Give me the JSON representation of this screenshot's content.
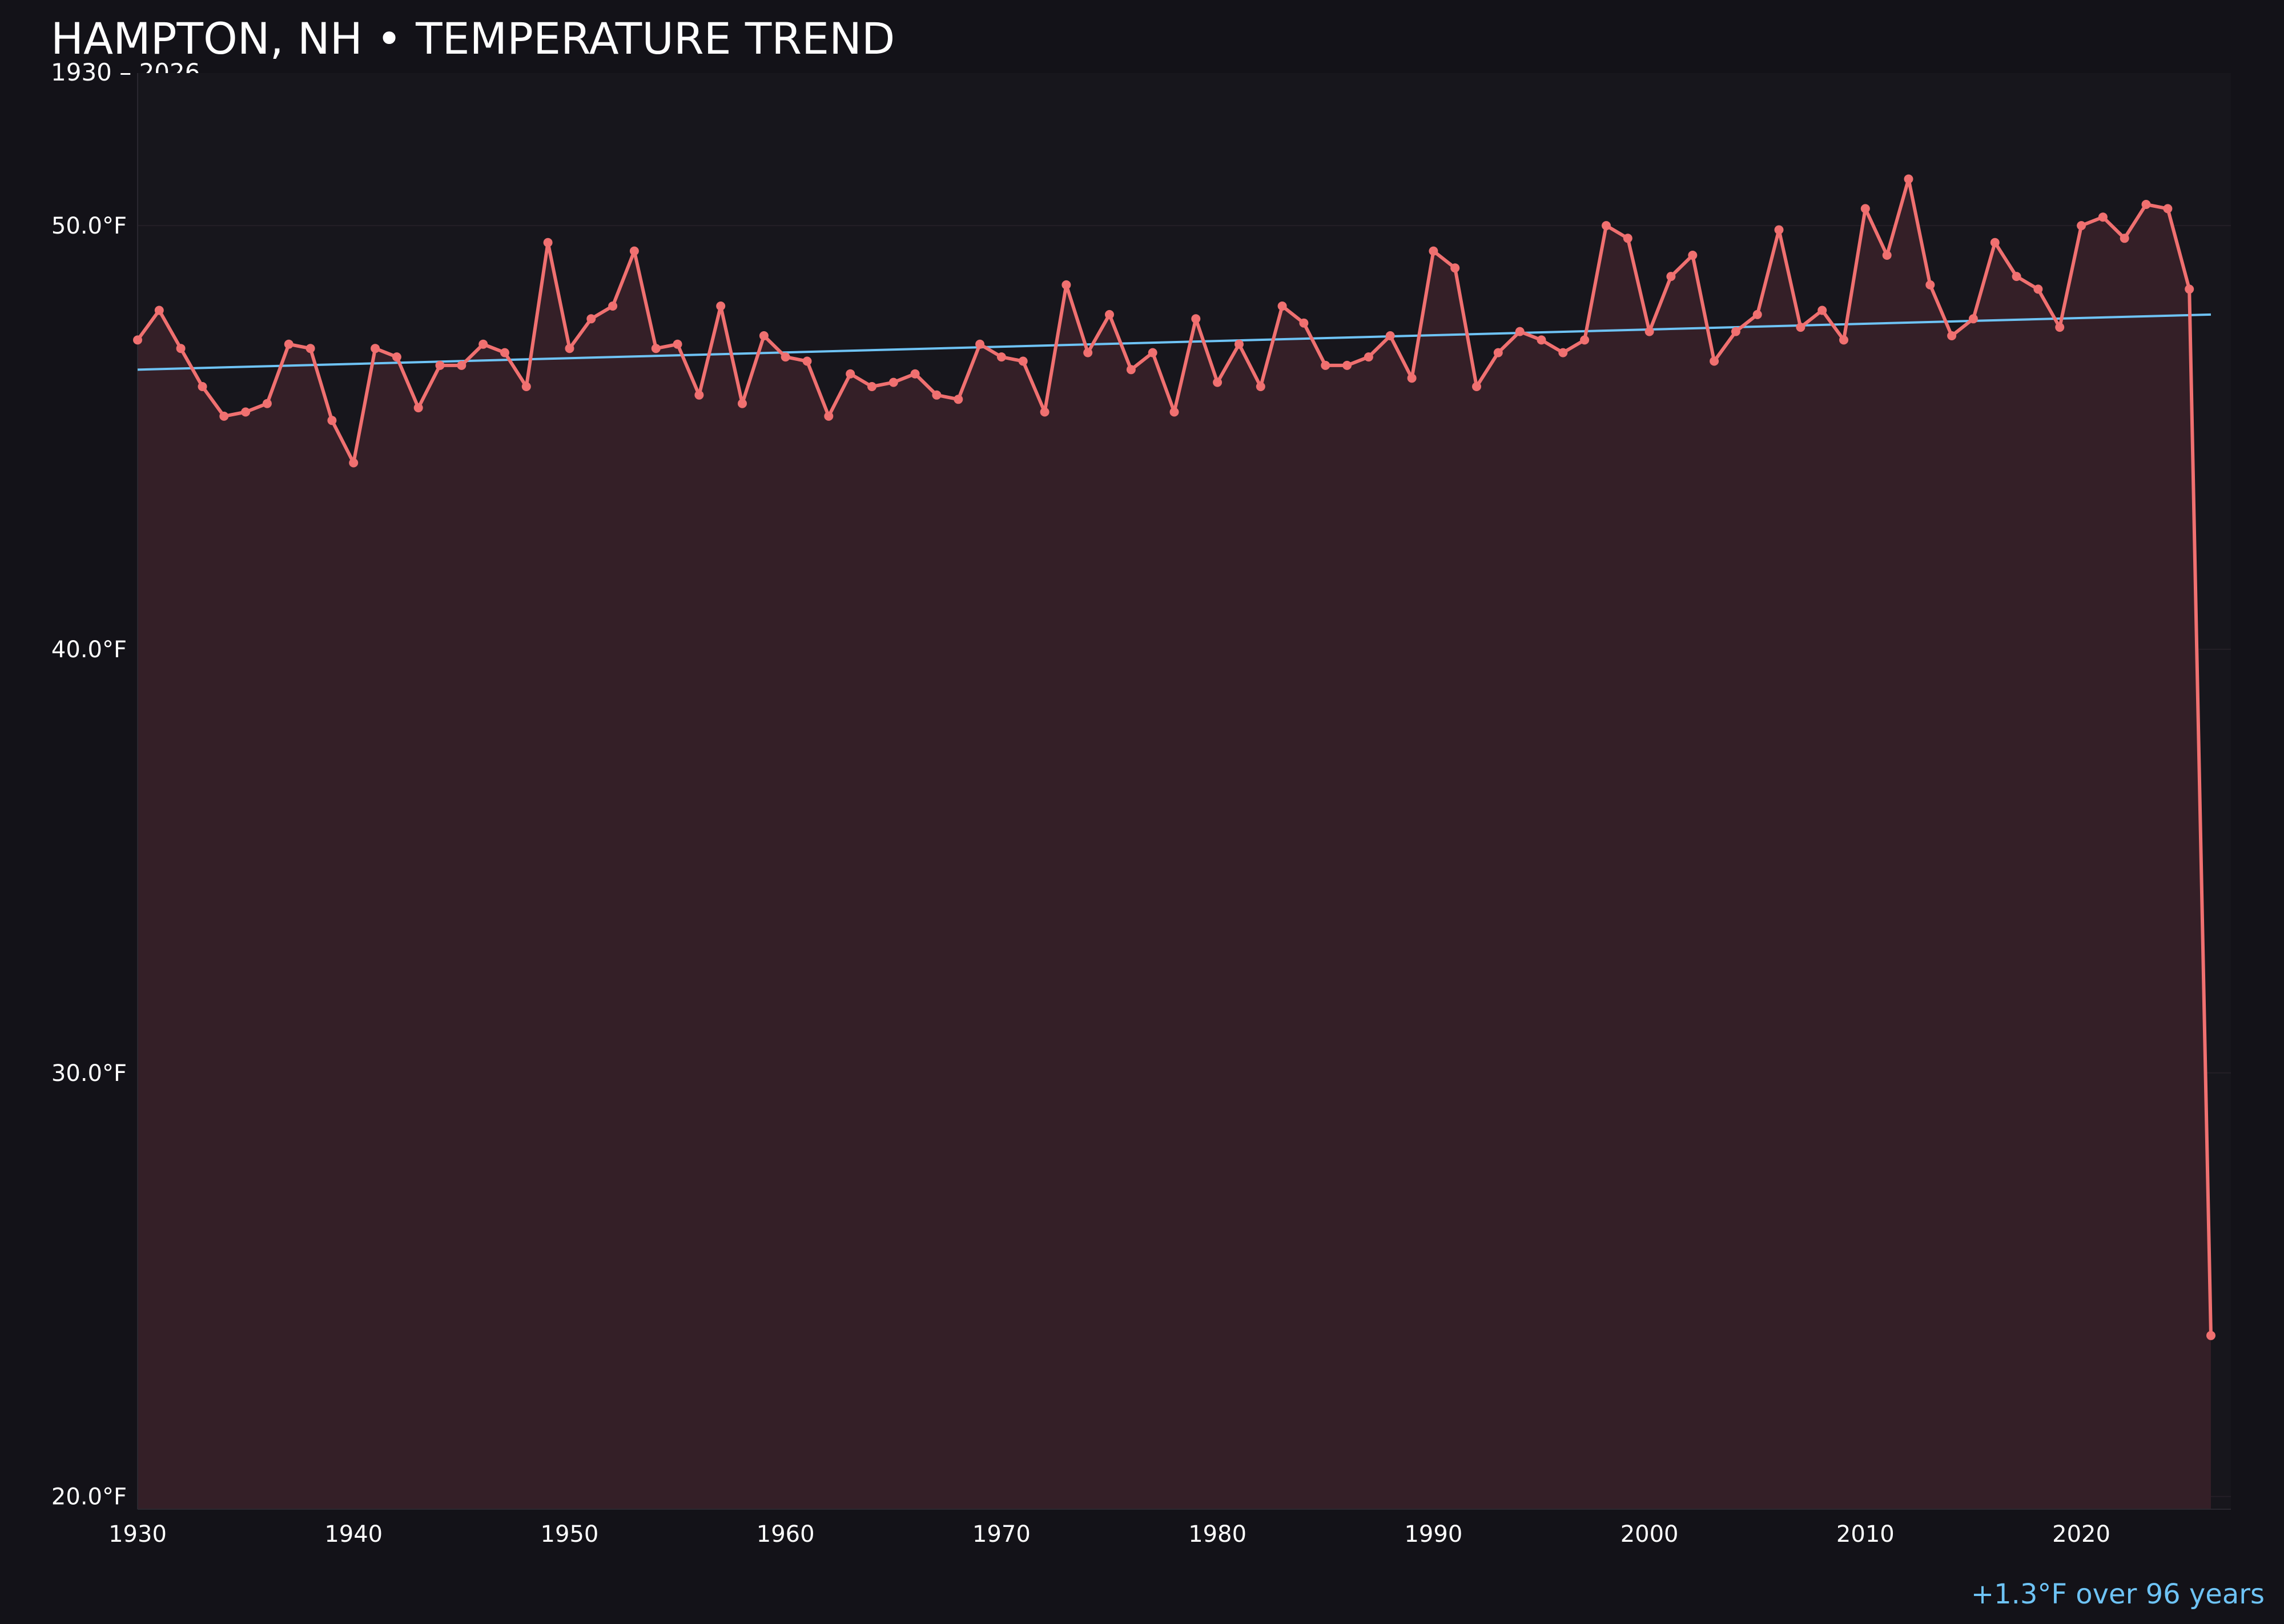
{
  "colors": {
    "background": "#131218",
    "temperature_line": "#f07070",
    "area_fill": "#341f27",
    "trend_line": "#6ec3f5",
    "grid": "#241f26",
    "text": "#ffffff"
  },
  "chart_data": {
    "type": "line",
    "title": "HAMPTON, NH • TEMPERATURE TREND",
    "subtitle": "1930 – 2026",
    "annotation": "+1.3°F over 96 years",
    "xlabel": "",
    "ylabel": "",
    "xlim": [
      1930,
      2027
    ],
    "ylim": [
      19.7,
      53.6
    ],
    "grid": true,
    "area_fill": true,
    "x_ticks": [
      {
        "value": 1930,
        "label": "1930"
      },
      {
        "value": 1940,
        "label": "1940"
      },
      {
        "value": 1950,
        "label": "1950"
      },
      {
        "value": 1960,
        "label": "1960"
      },
      {
        "value": 1970,
        "label": "1970"
      },
      {
        "value": 1980,
        "label": "1980"
      },
      {
        "value": 1990,
        "label": "1990"
      },
      {
        "value": 2000,
        "label": "2000"
      },
      {
        "value": 2010,
        "label": "2010"
      },
      {
        "value": 2020,
        "label": "2020"
      }
    ],
    "y_ticks": [
      {
        "value": 20,
        "label": "20.0°F"
      },
      {
        "value": 30,
        "label": "30.0°F"
      },
      {
        "value": 40,
        "label": "40.0°F"
      },
      {
        "value": 50,
        "label": "50.0°F"
      }
    ],
    "x": [
      1930,
      1931,
      1932,
      1933,
      1934,
      1935,
      1936,
      1937,
      1938,
      1939,
      1940,
      1941,
      1942,
      1943,
      1944,
      1945,
      1946,
      1947,
      1948,
      1949,
      1950,
      1951,
      1952,
      1953,
      1954,
      1955,
      1956,
      1957,
      1958,
      1959,
      1960,
      1961,
      1962,
      1963,
      1964,
      1965,
      1966,
      1967,
      1968,
      1969,
      1970,
      1971,
      1972,
      1973,
      1974,
      1975,
      1976,
      1977,
      1978,
      1979,
      1980,
      1981,
      1982,
      1983,
      1984,
      1985,
      1986,
      1987,
      1988,
      1989,
      1990,
      1991,
      1992,
      1993,
      1994,
      1995,
      1996,
      1997,
      1998,
      1999,
      2000,
      2001,
      2002,
      2003,
      2004,
      2005,
      2006,
      2007,
      2008,
      2009,
      2010,
      2011,
      2012,
      2013,
      2014,
      2015,
      2016,
      2017,
      2018,
      2019,
      2020,
      2021,
      2022,
      2023,
      2024,
      2025,
      2026
    ],
    "series": [
      {
        "values": [
          47.3,
          48.0,
          47.1,
          46.2,
          45.5,
          45.6,
          45.8,
          47.2,
          47.1,
          45.4,
          44.4,
          47.1,
          46.9,
          45.7,
          46.7,
          46.7,
          47.2,
          47.0,
          46.2,
          49.6,
          47.1,
          47.8,
          48.1,
          49.4,
          47.1,
          47.2,
          46.0,
          48.1,
          45.8,
          47.4,
          46.9,
          46.8,
          45.5,
          46.5,
          46.2,
          46.3,
          46.5,
          46.0,
          45.9,
          47.2,
          46.9,
          46.8,
          45.6,
          48.6,
          47.0,
          47.9,
          46.6,
          47.0,
          45.6,
          47.8,
          46.3,
          47.2,
          46.2,
          48.1,
          47.7,
          46.7,
          46.7,
          46.9,
          47.4,
          46.4,
          49.4,
          49.0,
          46.2,
          47.0,
          47.5,
          47.3,
          47.0,
          47.3,
          50.0,
          49.7,
          47.5,
          48.8,
          49.3,
          46.8,
          47.5,
          47.9,
          49.9,
          47.6,
          48.0,
          47.3,
          50.4,
          49.3,
          51.1,
          48.6,
          47.4,
          47.8,
          49.6,
          48.8,
          48.5,
          47.6,
          50.0,
          50.2,
          49.7,
          50.5,
          50.4,
          48.5,
          23.8
        ]
      }
    ],
    "trend_line": {
      "start": {
        "x": 1930,
        "y": 46.6
      },
      "end": {
        "x": 2026,
        "y": 47.9
      }
    }
  }
}
